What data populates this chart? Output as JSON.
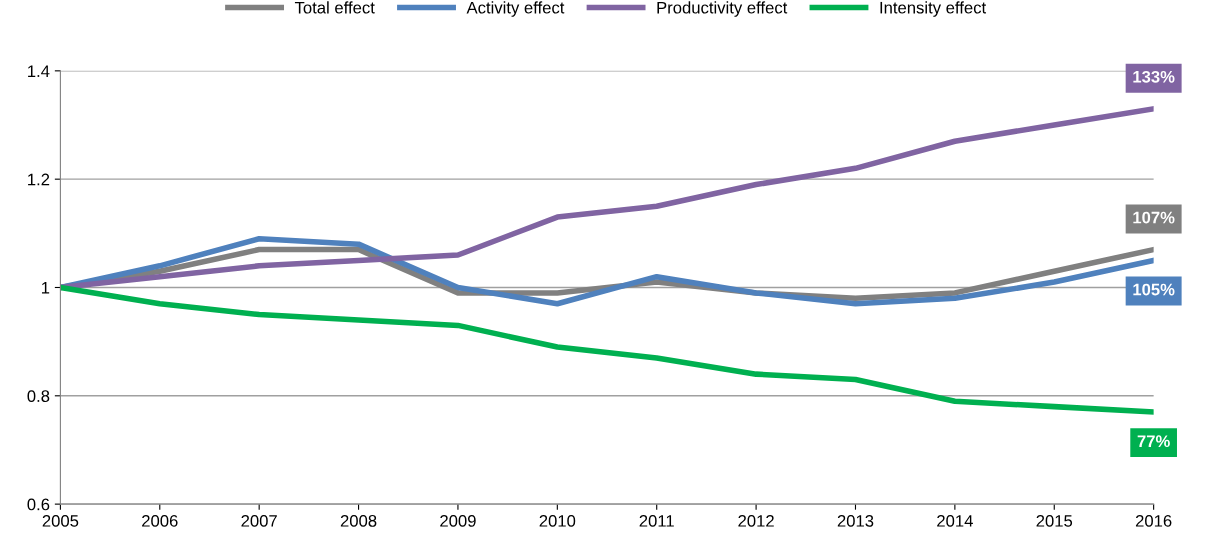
{
  "chart_data": {
    "type": "line",
    "x": [
      2005,
      2006,
      2007,
      2008,
      2009,
      2010,
      2011,
      2012,
      2013,
      2014,
      2015,
      2016
    ],
    "series": [
      {
        "name": "Total effect",
        "color": "#808080",
        "values": [
          1.0,
          1.03,
          1.07,
          1.07,
          0.99,
          0.99,
          1.01,
          0.99,
          0.98,
          0.99,
          1.03,
          1.07
        ],
        "value_labels": [
          null,
          null,
          null,
          null,
          null,
          null,
          null,
          null,
          null,
          null,
          null,
          "107%"
        ]
      },
      {
        "name": "Activity effect",
        "color": "#4f81bd",
        "values": [
          1.0,
          1.04,
          1.09,
          1.08,
          1.0,
          0.97,
          1.02,
          0.99,
          0.97,
          0.98,
          1.01,
          1.05
        ],
        "value_labels": [
          null,
          null,
          null,
          null,
          null,
          null,
          null,
          null,
          null,
          null,
          null,
          "105%"
        ]
      },
      {
        "name": "Productivity effect",
        "color": "#8064a2",
        "values": [
          1.0,
          1.02,
          1.04,
          1.05,
          1.06,
          1.13,
          1.15,
          1.19,
          1.22,
          1.27,
          1.3,
          1.33
        ],
        "value_labels": [
          null,
          null,
          null,
          null,
          null,
          null,
          null,
          null,
          null,
          null,
          null,
          "133%"
        ]
      },
      {
        "name": "Intensity effect",
        "color": "#00b050",
        "values": [
          1.0,
          0.97,
          0.95,
          0.94,
          0.93,
          0.89,
          0.87,
          0.84,
          0.83,
          0.79,
          0.78,
          0.77
        ],
        "value_labels": [
          null,
          null,
          null,
          null,
          null,
          null,
          null,
          null,
          null,
          null,
          null,
          "77%"
        ]
      }
    ],
    "xlim": [
      2005,
      2016
    ],
    "xticks": [
      2005,
      2006,
      2007,
      2008,
      2009,
      2010,
      2011,
      2012,
      2013,
      2014,
      2015,
      2016
    ],
    "ylim": [
      0.6,
      1.4
    ],
    "yticks": [
      0.6,
      0.8,
      1,
      1.2,
      1.4
    ],
    "grid": "y",
    "legend": "top",
    "marker": "none",
    "line_style": "solid"
  }
}
